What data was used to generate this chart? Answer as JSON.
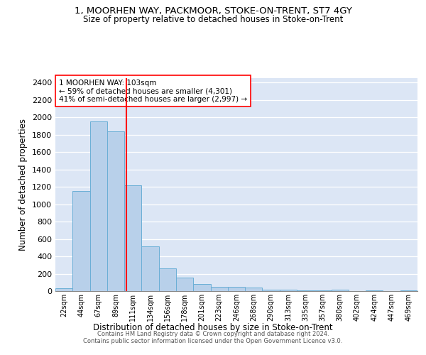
{
  "title": "1, MOORHEN WAY, PACKMOOR, STOKE-ON-TRENT, ST7 4GY",
  "subtitle": "Size of property relative to detached houses in Stoke-on-Trent",
  "xlabel": "Distribution of detached houses by size in Stoke-on-Trent",
  "ylabel": "Number of detached properties",
  "categories": [
    "22sqm",
    "44sqm",
    "67sqm",
    "89sqm",
    "111sqm",
    "134sqm",
    "156sqm",
    "178sqm",
    "201sqm",
    "223sqm",
    "246sqm",
    "268sqm",
    "290sqm",
    "313sqm",
    "335sqm",
    "357sqm",
    "380sqm",
    "402sqm",
    "424sqm",
    "447sqm",
    "469sqm"
  ],
  "values": [
    30,
    1150,
    1950,
    1840,
    1220,
    515,
    265,
    155,
    80,
    50,
    45,
    40,
    20,
    15,
    10,
    5,
    20,
    2,
    5,
    2,
    5
  ],
  "bar_color": "#b8d0ea",
  "bar_edge_color": "#6aaed6",
  "vline_color": "red",
  "vline_pos": 3.636,
  "annotation_text": "1 MOORHEN WAY: 103sqm\n← 59% of detached houses are smaller (4,301)\n41% of semi-detached houses are larger (2,997) →",
  "annotation_box_color": "white",
  "annotation_box_edge_color": "red",
  "ylim": [
    0,
    2450
  ],
  "yticks": [
    0,
    200,
    400,
    600,
    800,
    1000,
    1200,
    1400,
    1600,
    1800,
    2000,
    2200,
    2400
  ],
  "background_color": "#dce6f5",
  "footer_line1": "Contains HM Land Registry data © Crown copyright and database right 2024.",
  "footer_line2": "Contains public sector information licensed under the Open Government Licence v3.0."
}
